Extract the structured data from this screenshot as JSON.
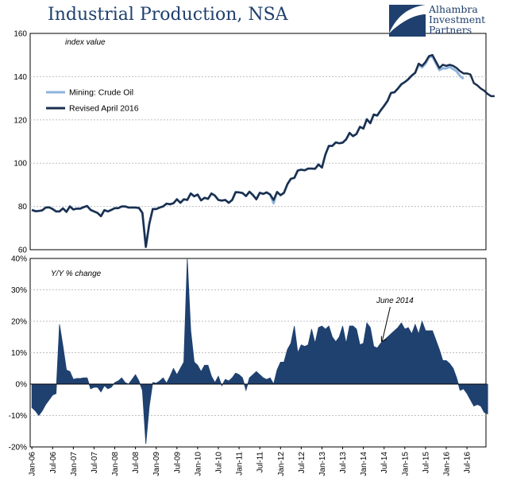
{
  "title": "Industrial Production, NSA",
  "logo": {
    "icon": "crescent-swoosh-logo-icon",
    "lines": [
      "Alhambra",
      "Investment",
      "Partners"
    ],
    "color": "#1f3f6e"
  },
  "colors": {
    "mining_line": "#8fb4dc",
    "revised_line": "#1b2f4d",
    "area_fill": "#1f4170",
    "grid": "#bfbfbf"
  },
  "chart_data": [
    {
      "type": "line",
      "title": "",
      "panel_label": "index value",
      "ylim": [
        60,
        160
      ],
      "yticks": [
        60,
        80,
        100,
        120,
        140,
        160
      ],
      "grid": "horizontal dashed",
      "legend_position": "left",
      "series": [
        {
          "name": "Mining:  Crude Oil",
          "x_start": "2006-01",
          "values": [
            78.4,
            77.8,
            77.9,
            78.2,
            79.5,
            79.6,
            78.8,
            77.7,
            77.7,
            79.1,
            77.5,
            80.0,
            78.6,
            79.0,
            79.0,
            79.7,
            80.2,
            78.4,
            77.7,
            77.0,
            75.5,
            78.3,
            77.7,
            78.4,
            79.2,
            79.2,
            80.0,
            80.0,
            79.5,
            79.5,
            79.5,
            79.3,
            77.0,
            61.3,
            72.0,
            78.8,
            78.8,
            79.5,
            80.0,
            81.3,
            81.0,
            81.5,
            83.3,
            81.7,
            83.3,
            83.0,
            86.0,
            84.7,
            85.5,
            82.8,
            84.0,
            83.5,
            86.0,
            85.0,
            83.0,
            82.7,
            83.0,
            81.7,
            83.0,
            86.6,
            86.5,
            86.2,
            84.8,
            86.8,
            85.3,
            83.3,
            86.3,
            85.8,
            86.5,
            85.5,
            81.5,
            86.7,
            85.2,
            86.3,
            90.3,
            92.8,
            93.2,
            96.6,
            97.0,
            96.7,
            97.5,
            97.5,
            97.4,
            99.4,
            98.0,
            104.0,
            108.0,
            108.0,
            109.6,
            109.2,
            109.5,
            111.0,
            114.0,
            112.5,
            113.5,
            116.8,
            116.0,
            120.3,
            118.5,
            122.5,
            122.0,
            124.4,
            126.5,
            128.8,
            132.5,
            132.8,
            134.5,
            136.5,
            137.5,
            138.8,
            140.5,
            141.8,
            145.5,
            144.3,
            146.0,
            149.0,
            149.3,
            146.2,
            143.0,
            143.9,
            143.8,
            144.5,
            143.5,
            142.5,
            140.3,
            139.0
          ]
        },
        {
          "name": "Revised April 2016",
          "x_start": "2006-01",
          "values": [
            78.4,
            77.8,
            77.9,
            78.2,
            79.5,
            79.6,
            78.8,
            77.7,
            77.7,
            79.1,
            77.5,
            80.0,
            78.6,
            79.0,
            79.0,
            79.7,
            80.2,
            78.4,
            77.7,
            77.0,
            75.5,
            78.3,
            77.7,
            78.4,
            79.2,
            79.2,
            80.0,
            80.0,
            79.5,
            79.5,
            79.5,
            79.3,
            77.0,
            61.3,
            72.0,
            78.8,
            78.8,
            79.5,
            80.0,
            81.3,
            81.0,
            81.5,
            83.3,
            81.7,
            83.3,
            83.0,
            86.0,
            84.7,
            85.5,
            82.8,
            84.0,
            83.5,
            86.0,
            85.0,
            83.0,
            82.7,
            83.0,
            81.7,
            83.0,
            86.6,
            86.5,
            86.2,
            84.8,
            86.8,
            85.3,
            83.3,
            86.3,
            85.8,
            86.5,
            85.5,
            83.0,
            86.7,
            85.2,
            86.3,
            90.3,
            92.8,
            93.2,
            96.6,
            97.0,
            96.7,
            97.5,
            97.5,
            97.4,
            99.4,
            98.0,
            104.0,
            108.0,
            108.0,
            109.6,
            109.2,
            109.5,
            111.0,
            114.0,
            112.5,
            113.5,
            116.8,
            116.0,
            120.3,
            118.5,
            122.5,
            122.0,
            124.4,
            126.5,
            128.8,
            132.5,
            132.8,
            134.5,
            136.5,
            137.5,
            138.8,
            140.5,
            141.8,
            146.0,
            145.0,
            146.8,
            149.5,
            150.0,
            147.0,
            144.0,
            145.5,
            145.0,
            145.5,
            145.0,
            144.0,
            142.5,
            141.5,
            141.5,
            141.0,
            137.0,
            136.0,
            134.5,
            133.5,
            132.0,
            131.0,
            131.0
          ]
        }
      ]
    },
    {
      "type": "area",
      "title": "",
      "panel_label": "Y/Y % change",
      "ylim": [
        -20,
        40
      ],
      "yticks": [
        -20,
        -10,
        0,
        10,
        20,
        30,
        40
      ],
      "ytick_labels": [
        "-20%",
        "-10%",
        "0%",
        "10%",
        "20%",
        "30%",
        "40%"
      ],
      "grid": "horizontal dashed",
      "zero_line": true,
      "x_start": "2006-01",
      "values": [
        -7.5,
        -8.5,
        -10.0,
        -8.5,
        -6.5,
        -5.0,
        -3.5,
        -3.0,
        19.0,
        12.0,
        4.5,
        4.0,
        1.5,
        1.8,
        1.8,
        2.0,
        2.0,
        -1.5,
        -1.0,
        -1.0,
        -2.5,
        -0.5,
        -1.5,
        -1.0,
        0.5,
        1.0,
        2.0,
        0.5,
        0.0,
        1.5,
        3.0,
        1.0,
        -2.0,
        -19.0,
        -7.0,
        0.5,
        0.3,
        1.0,
        2.0,
        0.3,
        2.5,
        5.0,
        3.0,
        5.0,
        7.0,
        40.0,
        17.0,
        7.0,
        6.0,
        4.0,
        6.0,
        6.0,
        2.5,
        0.5,
        2.5,
        -0.5,
        1.5,
        1.0,
        2.0,
        3.5,
        3.0,
        2.0,
        -2.0,
        2.0,
        3.0,
        4.0,
        3.0,
        2.0,
        1.5,
        2.0,
        0.0,
        4.5,
        7.0,
        7.0,
        11.0,
        13.0,
        18.5,
        10.0,
        12.5,
        12.0,
        12.5,
        17.5,
        13.0,
        18.0,
        18.5,
        17.5,
        18.5,
        15.0,
        13.5,
        15.0,
        18.5,
        13.0,
        18.5,
        18.5,
        17.5,
        12.5,
        13.0,
        19.5,
        18.0,
        12.0,
        11.5,
        13.0,
        14.0,
        15.0,
        16.0,
        17.0,
        18.0,
        19.5,
        17.5,
        18.0,
        16.0,
        19.0,
        16.0,
        20.0,
        17.0,
        17.0,
        17.0,
        14.0,
        11.0,
        7.5,
        7.5,
        6.5,
        5.0,
        2.0,
        -2.0,
        -1.5,
        -3.0,
        -5.0,
        -7.0,
        -6.5,
        -7.0,
        -9.0,
        -9.5
      ],
      "annotation": {
        "text": "June 2014",
        "target_x": "2014-06"
      }
    }
  ],
  "x_tick_labels": [
    "Jan-06",
    "Jul-06",
    "Jan-07",
    "Jul-07",
    "Jan-08",
    "Jul-08",
    "Jan-09",
    "Jul-09",
    "Jan-10",
    "Jul-10",
    "Jan-11",
    "Jul-11",
    "Jan-12",
    "Jul-12",
    "Jan-13",
    "Jul-13",
    "Jan-14",
    "Jul-14",
    "Jan-15",
    "Jul-15",
    "Jan-16",
    "Jul-16"
  ]
}
